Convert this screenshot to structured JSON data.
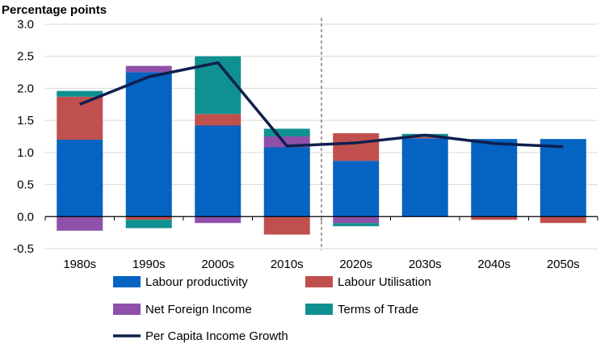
{
  "chart_data": {
    "type": "bar",
    "stacked": true,
    "title": "",
    "ylabel": "Percentage points",
    "xlabel": "",
    "categories": [
      "1980s",
      "1990s",
      "2000s",
      "2010s",
      "2020s",
      "2030s",
      "2040s",
      "2050s"
    ],
    "ylim": [
      -0.5,
      3.0
    ],
    "yticks": [
      "3.0",
      "2.5",
      "2.0",
      "1.5",
      "1.0",
      "0.5",
      "0.0",
      "-0.5"
    ],
    "grid": true,
    "forecast_divider_between": [
      "2010s",
      "2020s"
    ],
    "series": [
      {
        "name": "Labour productivity",
        "kind": "bar",
        "color": "#0563C1",
        "values": [
          1.2,
          2.25,
          1.42,
          1.08,
          0.87,
          1.22,
          1.21,
          1.21
        ]
      },
      {
        "name": "Labour Utilisation",
        "kind": "bar",
        "color": "#C0504D",
        "values": [
          0.67,
          -0.05,
          0.18,
          -0.28,
          0.43,
          0.02,
          -0.05,
          -0.1
        ]
      },
      {
        "name": "Net Foreign Income",
        "kind": "bar",
        "color": "#8E50A8",
        "values": [
          -0.22,
          0.1,
          -0.1,
          0.17,
          -0.1,
          0.0,
          0.0,
          0.0
        ]
      },
      {
        "name": "Terms of Trade",
        "kind": "bar",
        "color": "#109090",
        "values": [
          0.09,
          -0.13,
          0.9,
          0.12,
          -0.05,
          0.05,
          0.0,
          0.0
        ]
      },
      {
        "name": "Per Capita Income Growth",
        "kind": "line",
        "color": "#0F1F4D",
        "values": [
          1.75,
          2.18,
          2.4,
          1.1,
          1.15,
          1.27,
          1.14,
          1.09
        ]
      }
    ],
    "legend": [
      {
        "label": "Labour productivity",
        "color": "#0563C1",
        "type": "box"
      },
      {
        "label": "Labour Utilisation",
        "color": "#C0504D",
        "type": "box"
      },
      {
        "label": "Net Foreign Income",
        "color": "#8E50A8",
        "type": "box"
      },
      {
        "label": "Terms of Trade",
        "color": "#109090",
        "type": "box"
      },
      {
        "label": "Per Capita Income Growth",
        "color": "#0F1F4D",
        "type": "line"
      }
    ],
    "legend_placement": "bottom"
  }
}
